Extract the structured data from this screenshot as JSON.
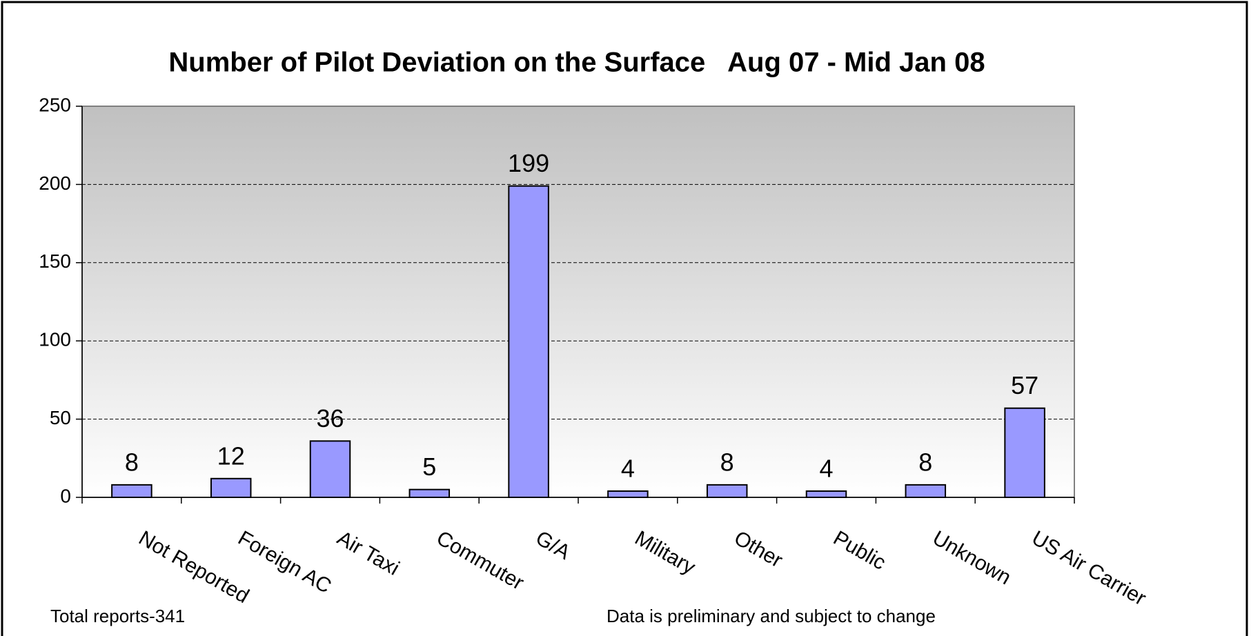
{
  "chart_data": {
    "type": "bar",
    "title": "Number of Pilot Deviation on the Surface   Aug 07 - Mid Jan 08",
    "categories": [
      "Not Reported",
      "Foreign AC",
      "Air Taxi",
      "Commuter",
      "G/A",
      "Military",
      "Other",
      "Public",
      "Unknown",
      "US Air Carrier"
    ],
    "values": [
      8,
      12,
      36,
      5,
      199,
      4,
      8,
      4,
      8,
      57
    ],
    "color": "#9999ff",
    "ylim": [
      0,
      250
    ],
    "yticks": [
      0,
      50,
      100,
      150,
      200,
      250
    ],
    "grid": true,
    "annotations": [
      "Total reports-341",
      "Data is preliminary and subject to change"
    ]
  }
}
